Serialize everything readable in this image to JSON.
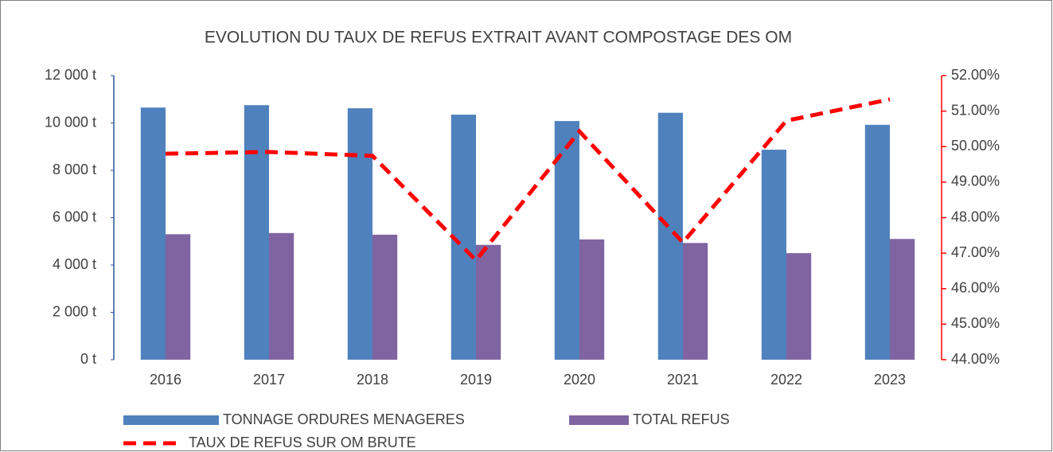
{
  "chart_data": {
    "type": "bar_line",
    "title": "EVOLUTION DU TAUX DE REFUS EXTRAIT AVANT COMPOSTAGE DES OM",
    "categories": [
      "2016",
      "2017",
      "2018",
      "2019",
      "2020",
      "2021",
      "2022",
      "2023"
    ],
    "series": [
      {
        "name": "TONNAGE ORDURES MENAGERES",
        "type": "bar",
        "color": "#4f81bd",
        "values": [
          10650,
          10750,
          10620,
          10350,
          10080,
          10430,
          8870,
          9920
        ]
      },
      {
        "name": "TOTAL REFUS",
        "type": "bar",
        "color": "#8064a2",
        "values": [
          5300,
          5350,
          5280,
          4850,
          5080,
          4930,
          4500,
          5100
        ]
      },
      {
        "name": "TAUX DE REFUS SUR OM BRUTE",
        "type": "line",
        "axis": "y2",
        "color": "#ff0000",
        "dashed": true,
        "values": [
          49.8,
          49.85,
          49.74,
          46.8,
          50.43,
          47.3,
          50.73,
          51.33
        ]
      }
    ],
    "ylim": [
      0,
      12000
    ],
    "yticks": [
      {
        "value": 0,
        "label": "0 t"
      },
      {
        "value": 2000,
        "label": "2 000 t"
      },
      {
        "value": 4000,
        "label": "4 000 t"
      },
      {
        "value": 6000,
        "label": "6 000 t"
      },
      {
        "value": 8000,
        "label": "8 000 t"
      },
      {
        "value": 10000,
        "label": "10 000 t"
      },
      {
        "value": 12000,
        "label": "12 000 t"
      }
    ],
    "y2lim": [
      44,
      52
    ],
    "y2ticks": [
      {
        "value": 44,
        "label": "44.00%"
      },
      {
        "value": 45,
        "label": "45.00%"
      },
      {
        "value": 46,
        "label": "46.00%"
      },
      {
        "value": 47,
        "label": "47.00%"
      },
      {
        "value": 48,
        "label": "48.00%"
      },
      {
        "value": 49,
        "label": "49.00%"
      },
      {
        "value": 50,
        "label": "50.00%"
      },
      {
        "value": 51,
        "label": "51.00%"
      },
      {
        "value": 52,
        "label": "52.00%"
      }
    ],
    "y2_axis_color": "#ff0000",
    "y_axis_color": "#2f5597",
    "grid": false
  }
}
